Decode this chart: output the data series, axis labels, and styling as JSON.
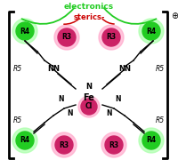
{
  "bg_color": "#ffffff",
  "green_color": "#22cc22",
  "pink_color": "#cc2266",
  "green_glow": "#aaffaa",
  "pink_glow": "#ffaacc",
  "black": "#000000",
  "red_color": "#cc0000",
  "green_bracket": "#22cc22",
  "figsize": [
    2.0,
    1.89
  ],
  "dpi": 100,
  "electronics_text": "electronics",
  "sterics_text": "sterics-",
  "fe_text": "Fe",
  "cl_text": "Cl",
  "r3_text": "R3",
  "r4_text": "R4",
  "r5_text": "R5",
  "plus_text": "⊕",
  "circle_r": 10,
  "glow_r": 14,
  "cl_r": 9,
  "cl_glow_r": 12
}
